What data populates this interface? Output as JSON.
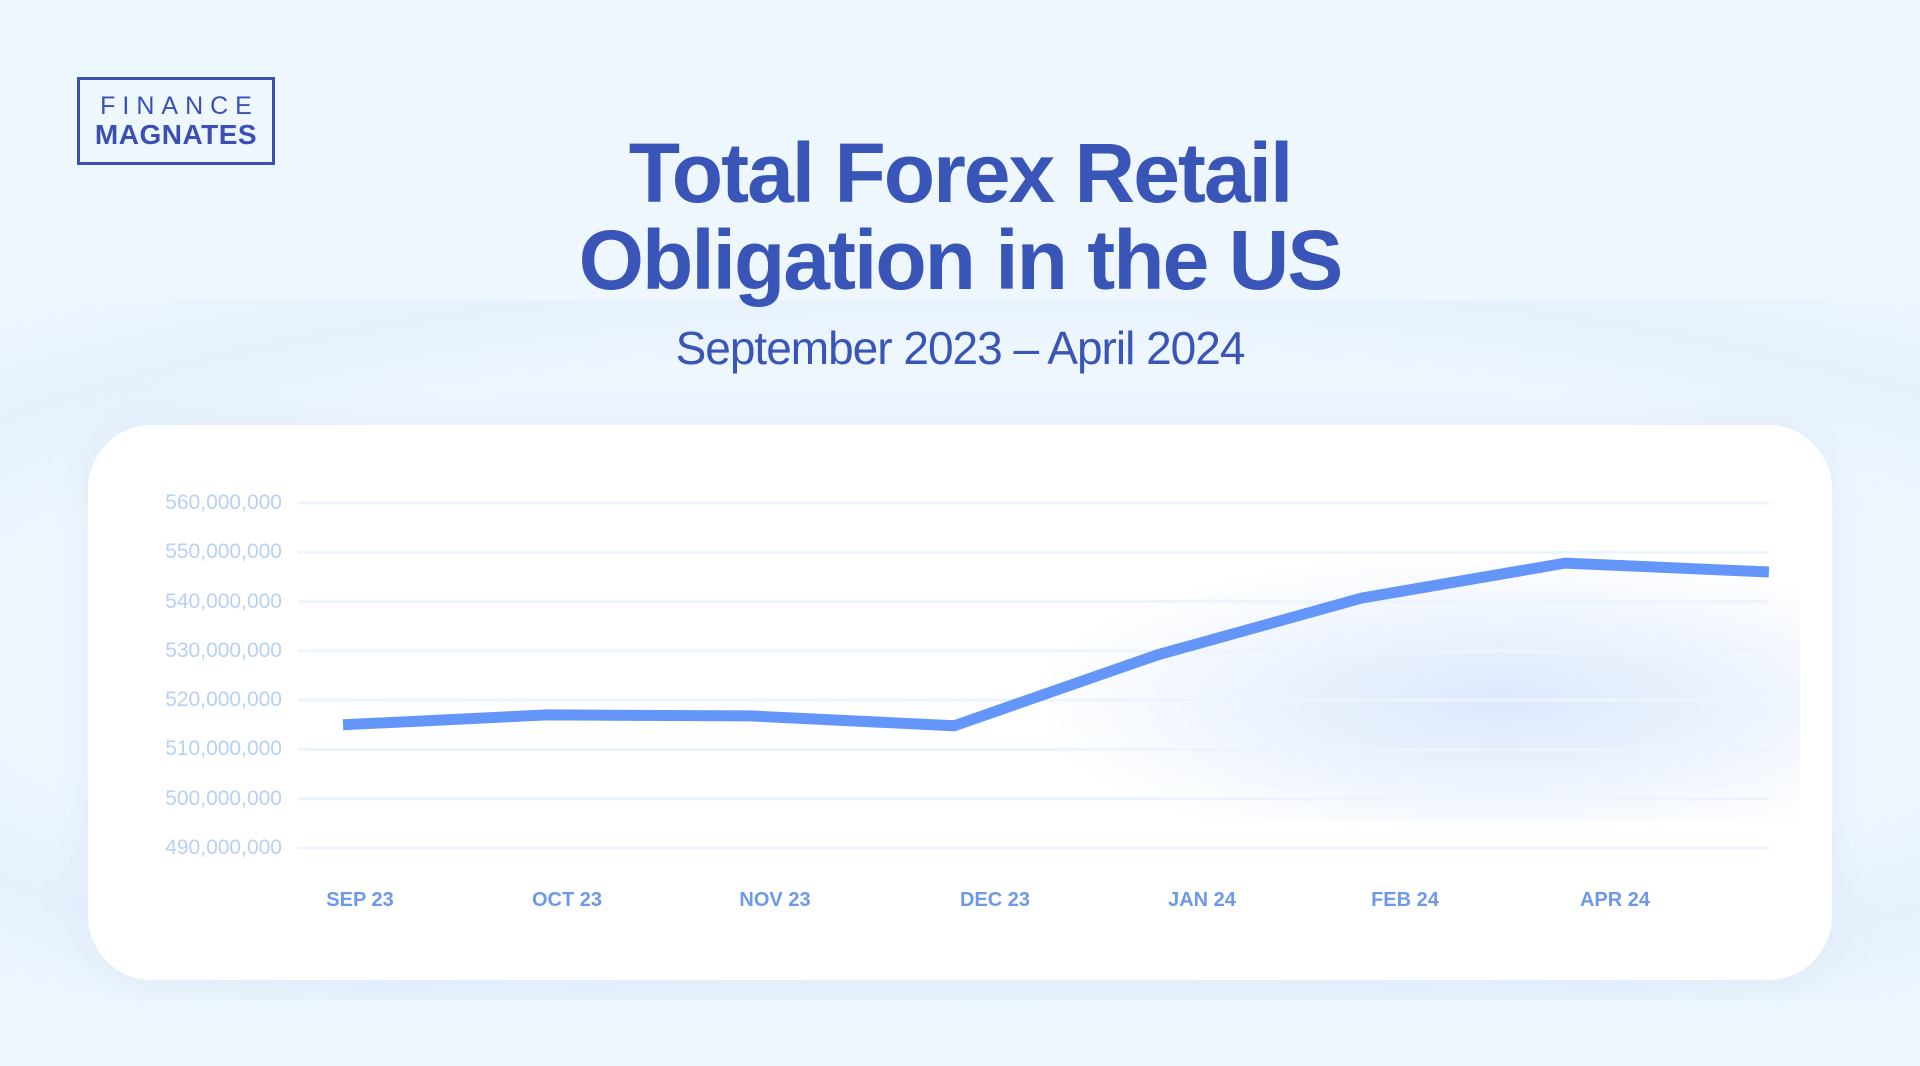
{
  "logo": {
    "line1": "FINANCE",
    "line2": "MAGNATES"
  },
  "header": {
    "title_line1": "Total Forex Retail",
    "title_line2": "Obligation in the US",
    "subtitle": "September 2023 – April 2024"
  },
  "colors": {
    "background": "#EEF6FE",
    "title": "#3A55B8",
    "line": "#6496FA",
    "y_tick": "#B8D0F5",
    "x_tick": "#6E98EA",
    "grid": "#EEF4FD"
  },
  "axis": {
    "y_ticks": [
      "560,000,000",
      "550,000,000",
      "540,000,000",
      "530,000,000",
      "520,000,000",
      "510,000,000",
      "500,000,000",
      "490,000,000"
    ],
    "x_ticks": [
      "SEP 23",
      "OCT 23",
      "NOV 23",
      "DEC 23",
      "JAN 24",
      "FEB 24",
      "APR 24"
    ]
  },
  "chart_data": {
    "type": "line",
    "title": "Total Forex Retail Obligation in the US",
    "subtitle": "September 2023 – April 2024",
    "xlabel": "",
    "ylabel": "",
    "categories": [
      "SEP 23",
      "OCT 23",
      "NOV 23",
      "DEC 23",
      "JAN 24",
      "FEB 24",
      "APR 24",
      ""
    ],
    "values": [
      515000000,
      517000000,
      516800000,
      514800000,
      529200000,
      540700000,
      547800000,
      546000000
    ],
    "ylim": [
      490000000,
      560000000
    ],
    "y_ticks": [
      560000000,
      550000000,
      540000000,
      530000000,
      520000000,
      510000000,
      500000000,
      490000000
    ],
    "grid": true,
    "legend": null
  }
}
